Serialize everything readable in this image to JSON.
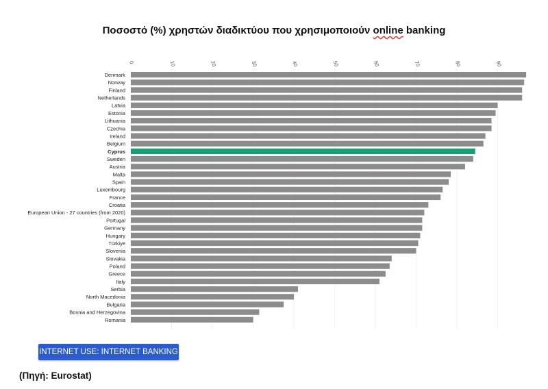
{
  "title": {
    "prefix": "Ποσοστό (%) χρηστών διαδικτύου που χρησιμοποιούν ",
    "underlined": "online",
    "suffix": " banking"
  },
  "button_label": "INTERNET USE: INTERNET BANKING",
  "source_note": "(Πηγή: Eurostat)",
  "colors": {
    "bar": "#8c8c8c",
    "highlight": "#1a9e77",
    "button": "#2b5ccf"
  },
  "chart_data": {
    "type": "bar",
    "orientation": "horizontal",
    "title": "Ποσοστό (%) χρηστών διαδικτύου που χρησιμοποιούν online banking",
    "xlim": [
      0,
      97
    ],
    "ticks": [
      0,
      10,
      20,
      30,
      40,
      50,
      60,
      70,
      80,
      90
    ],
    "highlight": "Cyprus",
    "categories": [
      "Denmark",
      "Norway",
      "Finland",
      "Netherlands",
      "Latvia",
      "Estonia",
      "Lithuania",
      "Czechia",
      "Ireland",
      "Belgium",
      "Cyprus",
      "Sweden",
      "Austria",
      "Malta",
      "Spain",
      "Luxembourg",
      "France",
      "Croatia",
      "European Union - 27 countries (from 2020)",
      "Portugal",
      "Germany",
      "Hungary",
      "Türkiye",
      "Slovenia",
      "Slovakia",
      "Poland",
      "Greece",
      "Italy",
      "Serbia",
      "North Macedonia",
      "Bulgaria",
      "Bosnia and Herzegovina",
      "Romania"
    ],
    "values": [
      97,
      96.5,
      96,
      96,
      90,
      89.5,
      88.5,
      88.5,
      87,
      86.5,
      84.5,
      84,
      82,
      78.5,
      78,
      76.5,
      76,
      73,
      72,
      71.5,
      71.5,
      71,
      70.5,
      70,
      64,
      63.5,
      62.5,
      61,
      41,
      40,
      37.5,
      31.5,
      30
    ]
  }
}
